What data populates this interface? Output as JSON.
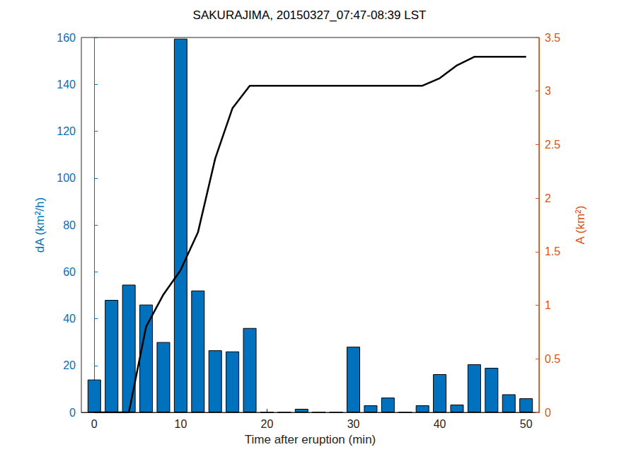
{
  "chart_data": {
    "type": "bar",
    "title": "SAKURAJIMA, 20150327_07:47-08:39 LST",
    "xlabel": "Time after eruption (min)",
    "ylabel": "dA (km²/h)",
    "y2label": "A (km²)",
    "x": [
      0,
      2,
      4,
      6,
      8,
      10,
      12,
      14,
      16,
      18,
      20,
      22,
      24,
      26,
      28,
      30,
      32,
      34,
      36,
      38,
      40,
      42,
      44,
      46,
      48,
      50
    ],
    "series": [
      {
        "type": "bar",
        "color": "#0072bd",
        "values": [
          14,
          48,
          54.5,
          46,
          30,
          159.5,
          52,
          26.5,
          26,
          36,
          0,
          0,
          1.5,
          0,
          0,
          28,
          3,
          6.3,
          0,
          3,
          16.3,
          3.3,
          20.5,
          19,
          7.7,
          6
        ]
      },
      {
        "type": "line",
        "color": "#000000",
        "axis": "y2",
        "values": [
          0,
          0,
          0,
          0.8,
          1.1,
          1.33,
          1.68,
          2.37,
          2.84,
          3.05,
          3.05,
          3.05,
          3.05,
          3.05,
          3.05,
          3.05,
          3.05,
          3.05,
          3.05,
          3.05,
          3.12,
          3.24,
          3.32,
          3.32,
          3.32,
          3.32
        ]
      }
    ],
    "xlim": [
      -1.5,
      51.5
    ],
    "xticks": [
      0,
      10,
      20,
      30,
      40,
      50
    ],
    "ylim": [
      0,
      160
    ],
    "yticks": [
      0,
      20,
      40,
      60,
      80,
      100,
      120,
      140,
      160
    ],
    "y2lim": [
      0,
      3.5
    ],
    "y2ticks": [
      0,
      0.5,
      1,
      1.5,
      2,
      2.5,
      3,
      3.5
    ],
    "grid": false
  }
}
